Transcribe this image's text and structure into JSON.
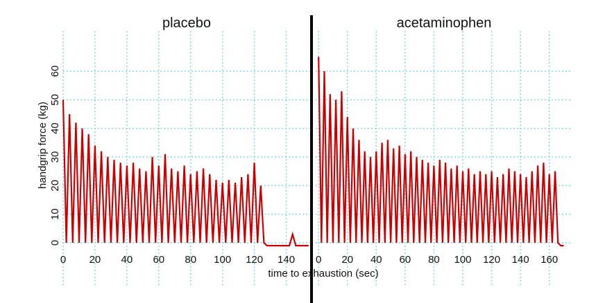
{
  "chart_data": [
    {
      "type": "line",
      "title": "placebo",
      "y_label": "handgrip force (kg)",
      "x": [
        0,
        2,
        4,
        6,
        8,
        10,
        12,
        14,
        16,
        18,
        20,
        22,
        24,
        26,
        28,
        30,
        32,
        34,
        36,
        38,
        40,
        42,
        44,
        46,
        48,
        50,
        52,
        54,
        56,
        58,
        60,
        62,
        64,
        66,
        68,
        70,
        72,
        74,
        76,
        78,
        80,
        82,
        84,
        86,
        88,
        90,
        92,
        94,
        96,
        98,
        100,
        102,
        104,
        106,
        108,
        110,
        112,
        114,
        116,
        118,
        120,
        122,
        124,
        126,
        128,
        130,
        132,
        134,
        136,
        138,
        140,
        142,
        144,
        146,
        148,
        150,
        152,
        154
      ],
      "series": [
        {
          "name": "placebo",
          "color": "#cc0000",
          "values": [
            50,
            0,
            45,
            0,
            42,
            0,
            40,
            0,
            38,
            0,
            34,
            0,
            32,
            0,
            30,
            0,
            29,
            0,
            28,
            0,
            27,
            0,
            28,
            0,
            26,
            0,
            25,
            0,
            30,
            0,
            27,
            0,
            31,
            0,
            26,
            0,
            25,
            0,
            27,
            0,
            24,
            0,
            25,
            0,
            26,
            0,
            24,
            0,
            22,
            0,
            21,
            0,
            22,
            0,
            21,
            0,
            23,
            0,
            24,
            0,
            28,
            0,
            20,
            0,
            -1,
            -1,
            -1,
            -1,
            -1,
            -1,
            -1,
            -1,
            3,
            -1,
            -1,
            -1,
            -1,
            -1
          ]
        }
      ],
      "xlim": [
        0,
        155
      ],
      "ylim": [
        -15,
        74
      ],
      "xticks": [
        0,
        20,
        40,
        60,
        80,
        100,
        120,
        140
      ],
      "yticks": [
        0,
        10,
        20,
        30,
        40,
        50,
        60
      ],
      "grid": true
    },
    {
      "type": "line",
      "title": "acetaminophen",
      "x_label": "time to exhaustion (sec)",
      "x": [
        0,
        2,
        4,
        6,
        8,
        10,
        12,
        14,
        16,
        18,
        20,
        22,
        24,
        26,
        28,
        30,
        32,
        34,
        36,
        38,
        40,
        42,
        44,
        46,
        48,
        50,
        52,
        54,
        56,
        58,
        60,
        62,
        64,
        66,
        68,
        70,
        72,
        74,
        76,
        78,
        80,
        82,
        84,
        86,
        88,
        90,
        92,
        94,
        96,
        98,
        100,
        102,
        104,
        106,
        108,
        110,
        112,
        114,
        116,
        118,
        120,
        122,
        124,
        126,
        128,
        130,
        132,
        134,
        136,
        138,
        140,
        142,
        144,
        146,
        148,
        150,
        152,
        154,
        156,
        158,
        160,
        162,
        164,
        166,
        168,
        170
      ],
      "series": [
        {
          "name": "acetaminophen",
          "color": "#cc0000",
          "values": [
            65,
            0,
            60,
            0,
            52,
            0,
            50,
            0,
            53,
            0,
            44,
            0,
            40,
            0,
            36,
            0,
            32,
            0,
            30,
            0,
            32,
            0,
            35,
            0,
            36,
            0,
            33,
            0,
            34,
            0,
            31,
            0,
            32,
            0,
            30,
            0,
            29,
            0,
            28,
            0,
            27,
            0,
            29,
            0,
            28,
            0,
            26,
            0,
            27,
            0,
            25,
            0,
            26,
            0,
            24,
            0,
            25,
            0,
            24,
            0,
            25,
            0,
            23,
            0,
            24,
            0,
            26,
            0,
            25,
            0,
            24,
            0,
            23,
            0,
            25,
            0,
            27,
            0,
            28,
            0,
            24,
            0,
            25,
            0,
            -1,
            -1
          ]
        }
      ],
      "xlim": [
        -2,
        176
      ],
      "ylim": [
        -15,
        74
      ],
      "xticks": [
        0,
        20,
        40,
        60,
        80,
        100,
        120,
        140,
        160
      ],
      "yticks": [
        0,
        10,
        20,
        30,
        40,
        50,
        60
      ],
      "grid": true
    }
  ]
}
